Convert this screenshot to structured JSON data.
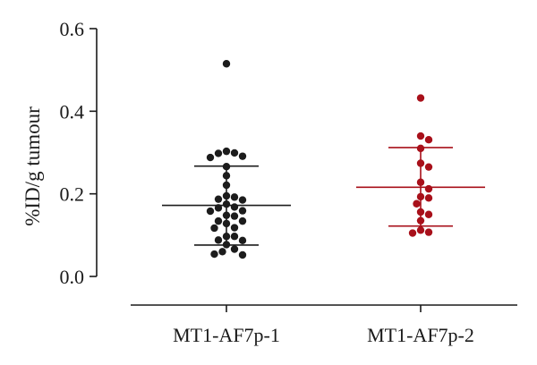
{
  "chart_data": {
    "type": "scatter",
    "subtype": "dot-plot-with-mean-and-sd",
    "title": "",
    "xlabel": "",
    "ylabel": "%ID/g tumour",
    "ylim": [
      0,
      0.6
    ],
    "yticks": [
      "0.0",
      "0.2",
      "0.4",
      "0.6"
    ],
    "grid": false,
    "legend": "none",
    "categories": [
      "MT1-AF7p-1",
      "MT1-AF7p-2"
    ],
    "series": [
      {
        "color": "#1c1c1c",
        "values": [
          0.515,
          0.303,
          0.298,
          0.299,
          0.288,
          0.291,
          0.266,
          0.244,
          0.221,
          0.195,
          0.185,
          0.192,
          0.187,
          0.175,
          0.166,
          0.168,
          0.158,
          0.159,
          0.148,
          0.146,
          0.134,
          0.134,
          0.128,
          0.118,
          0.117,
          0.097,
          0.097,
          0.088,
          0.087,
          0.077,
          0.066,
          0.06,
          0.054,
          0.052
        ],
        "mean": 0.172,
        "sd_low": 0.076,
        "sd_high": 0.267
      },
      {
        "color": "#a8101a",
        "values": [
          0.432,
          0.34,
          0.331,
          0.31,
          0.274,
          0.265,
          0.228,
          0.212,
          0.193,
          0.19,
          0.176,
          0.156,
          0.15,
          0.135,
          0.112,
          0.107,
          0.105
        ],
        "mean": 0.216,
        "sd_low": 0.122,
        "sd_high": 0.312
      }
    ]
  }
}
